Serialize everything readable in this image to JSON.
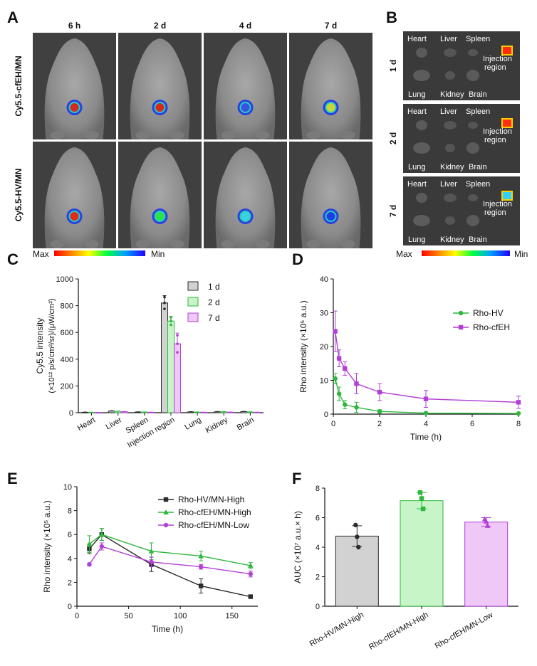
{
  "panel_letters": [
    "A",
    "B",
    "C",
    "D",
    "E",
    "F"
  ],
  "panel_a": {
    "time_points": [
      "6 h",
      "2 d",
      "4 d",
      "7 d"
    ],
    "groups": [
      "Cy5.5-cfEH/MN",
      "Cy5.5-HV/MN"
    ],
    "spots": [
      [
        "#d42a1e",
        "#d42a1e",
        "#3a52e0",
        "#c8d63a"
      ],
      [
        "#e32a1a",
        "#2ee04a",
        "#3fd0e0",
        "#1e3ee0"
      ]
    ],
    "colorbar": {
      "max_label": "Max",
      "min_label": "Min"
    }
  },
  "panel_b": {
    "days": [
      "1 d",
      "2 d",
      "7 d"
    ],
    "organs_top": [
      "Heart",
      "Liver",
      "Spleen"
    ],
    "organs_bottom": [
      "Lung",
      "Kidney",
      "Brain"
    ],
    "injection_label_1": "Injection",
    "injection_label_2": "region",
    "colorbar": {
      "max_label": "Max",
      "min_label": "Min"
    }
  },
  "colors": {
    "black": "#2b2b2b",
    "green": "#2db83d",
    "purple": "#b23fd6",
    "gray_fill": "#d2d2d2",
    "green_fill": "#c8f5c8",
    "purple_fill": "#efc8f7"
  },
  "chart_data": [
    {
      "id": "C",
      "type": "bar",
      "ylabel_line1": "Cy5.5 intensity",
      "ylabel_line2": "(×10¹² p/s/cm²/sr)/(μW/cm²)",
      "categories": [
        "Heart",
        "Liver",
        "Spleen",
        "Injection region",
        "Lung",
        "Kidney",
        "Brain"
      ],
      "series": [
        {
          "name": "1 d",
          "values": [
            3,
            12,
            5,
            820,
            6,
            7,
            8
          ],
          "errors": [
            2,
            3,
            2,
            55,
            2,
            2,
            2
          ]
        },
        {
          "name": "2 d",
          "values": [
            2,
            10,
            4,
            685,
            4,
            6,
            5
          ],
          "errors": [
            2,
            3,
            2,
            35,
            2,
            2,
            2
          ]
        },
        {
          "name": "7 d",
          "values": [
            1,
            7,
            3,
            515,
            3,
            4,
            3
          ],
          "errors": [
            1,
            2,
            1,
            80,
            1,
            1,
            1
          ]
        }
      ],
      "ylim": [
        0,
        1000
      ],
      "yticks": [
        0,
        200,
        400,
        600,
        800,
        1000
      ]
    },
    {
      "id": "D",
      "type": "line",
      "xlabel": "Time (h)",
      "ylabel": "Rho intensity (×10⁵ a.u.)",
      "xlim": [
        0,
        8
      ],
      "ylim": [
        0,
        40
      ],
      "xticks": [
        0,
        2,
        4,
        6,
        8
      ],
      "yticks": [
        0,
        10,
        20,
        30,
        40
      ],
      "series": [
        {
          "name": "Rho-HV",
          "x": [
            0.083,
            0.25,
            0.5,
            1,
            2,
            4,
            8
          ],
          "y": [
            10.5,
            6.0,
            2.8,
            2.0,
            0.8,
            0.3,
            0.2
          ],
          "errors": [
            1.5,
            2.0,
            1.2,
            1.5,
            0.5,
            0.3,
            0.2
          ]
        },
        {
          "name": "Rho-cfEH",
          "x": [
            0.083,
            0.25,
            0.5,
            1,
            2,
            4,
            8
          ],
          "y": [
            24.5,
            16.5,
            13.5,
            9.0,
            6.5,
            4.5,
            3.5
          ],
          "errors": [
            6.0,
            2.5,
            2.0,
            3.0,
            2.5,
            2.5,
            1.8
          ]
        }
      ]
    },
    {
      "id": "E",
      "type": "line",
      "xlabel": "Time (h)",
      "ylabel": "Rho intensity (×10⁵ a.u.)",
      "xlim": [
        0,
        175
      ],
      "ylim": [
        0,
        10
      ],
      "xticks": [
        0,
        50,
        100,
        150
      ],
      "yticks": [
        0,
        2,
        4,
        6,
        8,
        10
      ],
      "series": [
        {
          "name": "Rho-HV/MN-High",
          "x": [
            12,
            24,
            72,
            120,
            168
          ],
          "y": [
            4.8,
            6.0,
            3.5,
            1.7,
            0.8
          ],
          "errors": [
            0.4,
            0.5,
            0.6,
            0.6,
            0.1
          ]
        },
        {
          "name": "Rho-cfEH/MN-High",
          "x": [
            12,
            24,
            72,
            120,
            168
          ],
          "y": [
            5.2,
            6.0,
            4.6,
            4.2,
            3.4
          ],
          "errors": [
            0.7,
            0.5,
            0.7,
            0.4,
            0.25
          ]
        },
        {
          "name": "Rho-cfEH/MN-Low",
          "x": [
            12,
            24,
            72,
            120,
            168
          ],
          "y": [
            3.5,
            5.0,
            3.7,
            3.3,
            2.7
          ],
          "errors": [
            0.1,
            0.3,
            0.4,
            0.2,
            0.25
          ]
        }
      ]
    },
    {
      "id": "F",
      "type": "bar",
      "ylabel": "AUC (×10⁷ a.u.× h)",
      "categories": [
        "Rho-HV/MN-High",
        "Rho-cfEH/MN-High",
        "Rho-cfEH/MN-Low"
      ],
      "values": [
        4.75,
        7.15,
        5.7
      ],
      "errors": [
        0.7,
        0.55,
        0.3
      ],
      "points": [
        [
          5.5,
          4.7,
          4.0
        ],
        [
          7.7,
          7.3,
          6.6
        ],
        [
          5.9,
          5.75,
          5.45
        ]
      ],
      "ylim": [
        0,
        8
      ],
      "yticks": [
        0,
        2,
        4,
        6,
        8
      ]
    }
  ]
}
